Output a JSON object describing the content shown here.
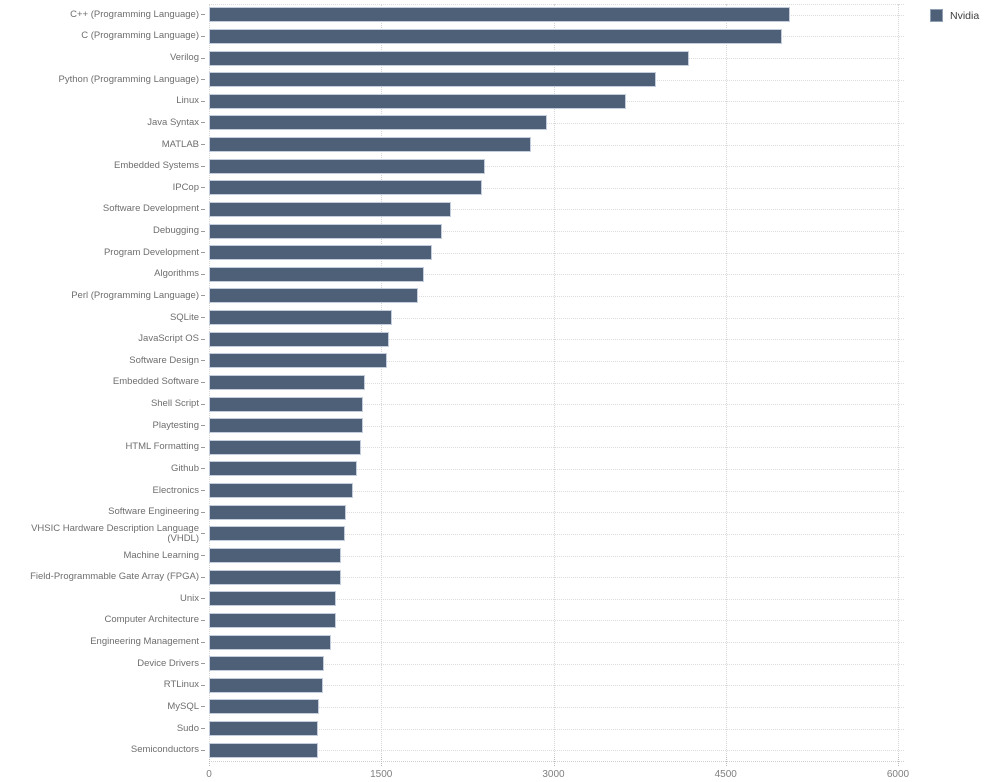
{
  "legend": {
    "label": "Nvidia"
  },
  "colors": {
    "bar": "#4d6078",
    "bar_border": "#c3cddb",
    "grid": "#dcdcdc",
    "category_label": "#6e6e6e",
    "tick_label": "#7f7f7f",
    "background": "#ffffff"
  },
  "chart_data": {
    "type": "bar",
    "orientation": "horizontal",
    "title": "",
    "xlabel": "",
    "ylabel": "",
    "xlim": [
      0,
      6000
    ],
    "xticks": [
      0,
      1500,
      3000,
      4500,
      6000
    ],
    "grid": true,
    "legend_position": "top-right",
    "categories": [
      "C++ (Programming Language)",
      "C (Programming Language)",
      "Verilog",
      "Python (Programming Language)",
      "Linux",
      "Java Syntax",
      "MATLAB",
      "Embedded Systems",
      "IPCop",
      "Software Development",
      "Debugging",
      "Program Development",
      "Algorithms",
      "Perl (Programming Language)",
      "SQLite",
      "JavaScript OS",
      "Software Design",
      "Embedded Software",
      "Shell Script",
      "Playtesting",
      "HTML Formatting",
      "Github",
      "Electronics",
      "Software Engineering",
      "VHSIC Hardware Description Language (VHDL)",
      "Machine Learning",
      "Field-Programmable Gate Array (FPGA)",
      "Unix",
      "Computer Architecture",
      "Engineering Management",
      "Device Drivers",
      "RTLinux",
      "MySQL",
      "Sudo",
      "Semiconductors"
    ],
    "series": [
      {
        "name": "Nvidia",
        "values": [
          5060,
          4990,
          4180,
          3890,
          3630,
          2940,
          2800,
          2400,
          2380,
          2110,
          2030,
          1940,
          1870,
          1820,
          1590,
          1570,
          1550,
          1360,
          1345,
          1340,
          1320,
          1290,
          1250,
          1190,
          1180,
          1150,
          1150,
          1110,
          1105,
          1060,
          1000,
          990,
          960,
          950,
          945
        ]
      }
    ]
  }
}
